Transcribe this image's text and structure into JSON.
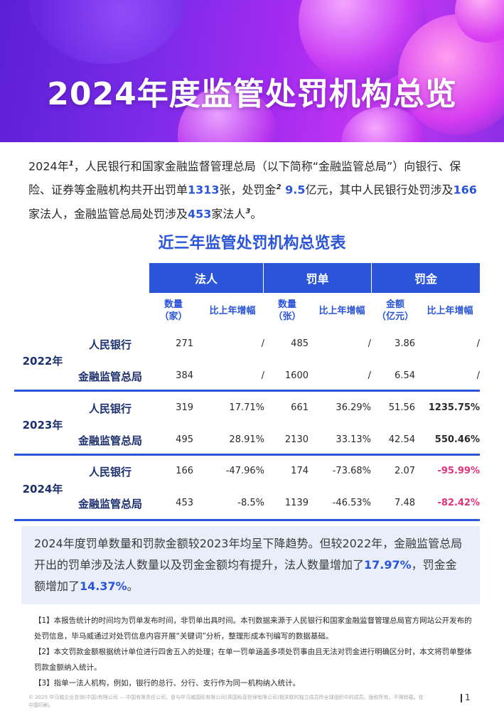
{
  "banner": {
    "title": "2024年度监管处罚机构总览"
  },
  "intro": {
    "p1": "2024年",
    "fn1": "1",
    "p2": "，人民银行和国家金融监督管理总局（以下简称“金融监管总局”）向银行、保险、证券等金融机构共开出罚单",
    "n_tickets": "1313",
    "p3": "张，处罚金",
    "fn2": "2",
    "n_fine": " 9.5",
    "p4": "亿元，其中人民银行处罚涉及",
    "n_pboc": "166",
    "p5": "家法人，金融监管总局处罚涉及",
    "n_nfra": "453",
    "p6": "家法人",
    "fn3": "3",
    "p7": "。"
  },
  "table": {
    "title": "近三年监管处罚机构总览表",
    "groups": [
      "法人",
      "罚单",
      "罚金"
    ],
    "subheaders": {
      "count_entity_1": "数量",
      "count_entity_2": "（家）",
      "count_ticket_1": "数量",
      "count_ticket_2": "（张）",
      "amount_1": "金额",
      "amount_2": "（亿元）",
      "growth": "比上年增幅"
    },
    "rows": [
      {
        "year": "2022年",
        "inst": "人民银行",
        "entities": "271",
        "entities_g": "/",
        "tickets": "485",
        "tickets_g": "/",
        "amount": "3.86",
        "amount_g": "/"
      },
      {
        "year": "",
        "inst": "金融监管总局",
        "entities": "384",
        "entities_g": "/",
        "tickets": "1600",
        "tickets_g": "/",
        "amount": "6.54",
        "amount_g": "/"
      },
      {
        "year": "2023年",
        "inst": "人民银行",
        "entities": "319",
        "entities_g": "17.71%",
        "tickets": "661",
        "tickets_g": "36.29%",
        "amount": "51.56",
        "amount_g": "1235.75%"
      },
      {
        "year": "",
        "inst": "金融监管总局",
        "entities": "495",
        "entities_g": "28.91%",
        "tickets": "2130",
        "tickets_g": "33.13%",
        "amount": "42.54",
        "amount_g": "550.46%"
      },
      {
        "year": "2024年",
        "inst": "人民银行",
        "entities": "166",
        "entities_g": "-47.96%",
        "tickets": "174",
        "tickets_g": "-73.68%",
        "amount": "2.07",
        "amount_g": "-95.99%"
      },
      {
        "year": "",
        "inst": "金融监管总局",
        "entities": "453",
        "entities_g": "-8.5%",
        "tickets": "1139",
        "tickets_g": "-46.53%",
        "amount": "7.48",
        "amount_g": "-82.42%"
      }
    ],
    "year_labels": [
      "2022年",
      "2023年",
      "2024年"
    ]
  },
  "summary": {
    "s1": "2024年度罚单数量和罚款金额较2023年均呈下降趋势。但较2022年，金融监管总局开出的罚单涉及法人数量以及罚金金额均有提升，法人数量增加了",
    "v1": "17.97%",
    "s2": "，罚金金额增加了",
    "v2": "14.37%",
    "s3": "。"
  },
  "notes": [
    "【1】本报告统计的时间均为罚单发布时间，非罚单出具时间。本刊数据来源于人民银行和国家金融监督管理总局官方网站公开发布的处罚信息，毕马威通过对处罚信息内容开展“关键词”分析，整理形成本刊编写的数据基础。",
    "【2】本文罚款金额根据统计单位进行四舍五入的处理；在单一罚单涵盖多项处罚事由且无法对罚金进行明确区分时，本文将罚单整体罚款金额纳入统计。",
    "【3】指单一法人机构，例如，银行的总行、分行、支行作为同一机构纳入统计。"
  ],
  "footer": {
    "copyright": "© 2025 毕马威企业咨询(中国)有限公司 — 中国有限责任公司，是与毕马威国际有限公司(英国私营担保有限公司)相关联的独立成员所全球组织中的成员。版权所有，不得转载。在中国印刷。",
    "page": "1"
  },
  "colors": {
    "accent": "#2b55d9",
    "negative": "#e0337a",
    "banner_from": "#5b1fd6",
    "banner_to": "#c637f2",
    "summary_bg": "#e9eefb"
  }
}
